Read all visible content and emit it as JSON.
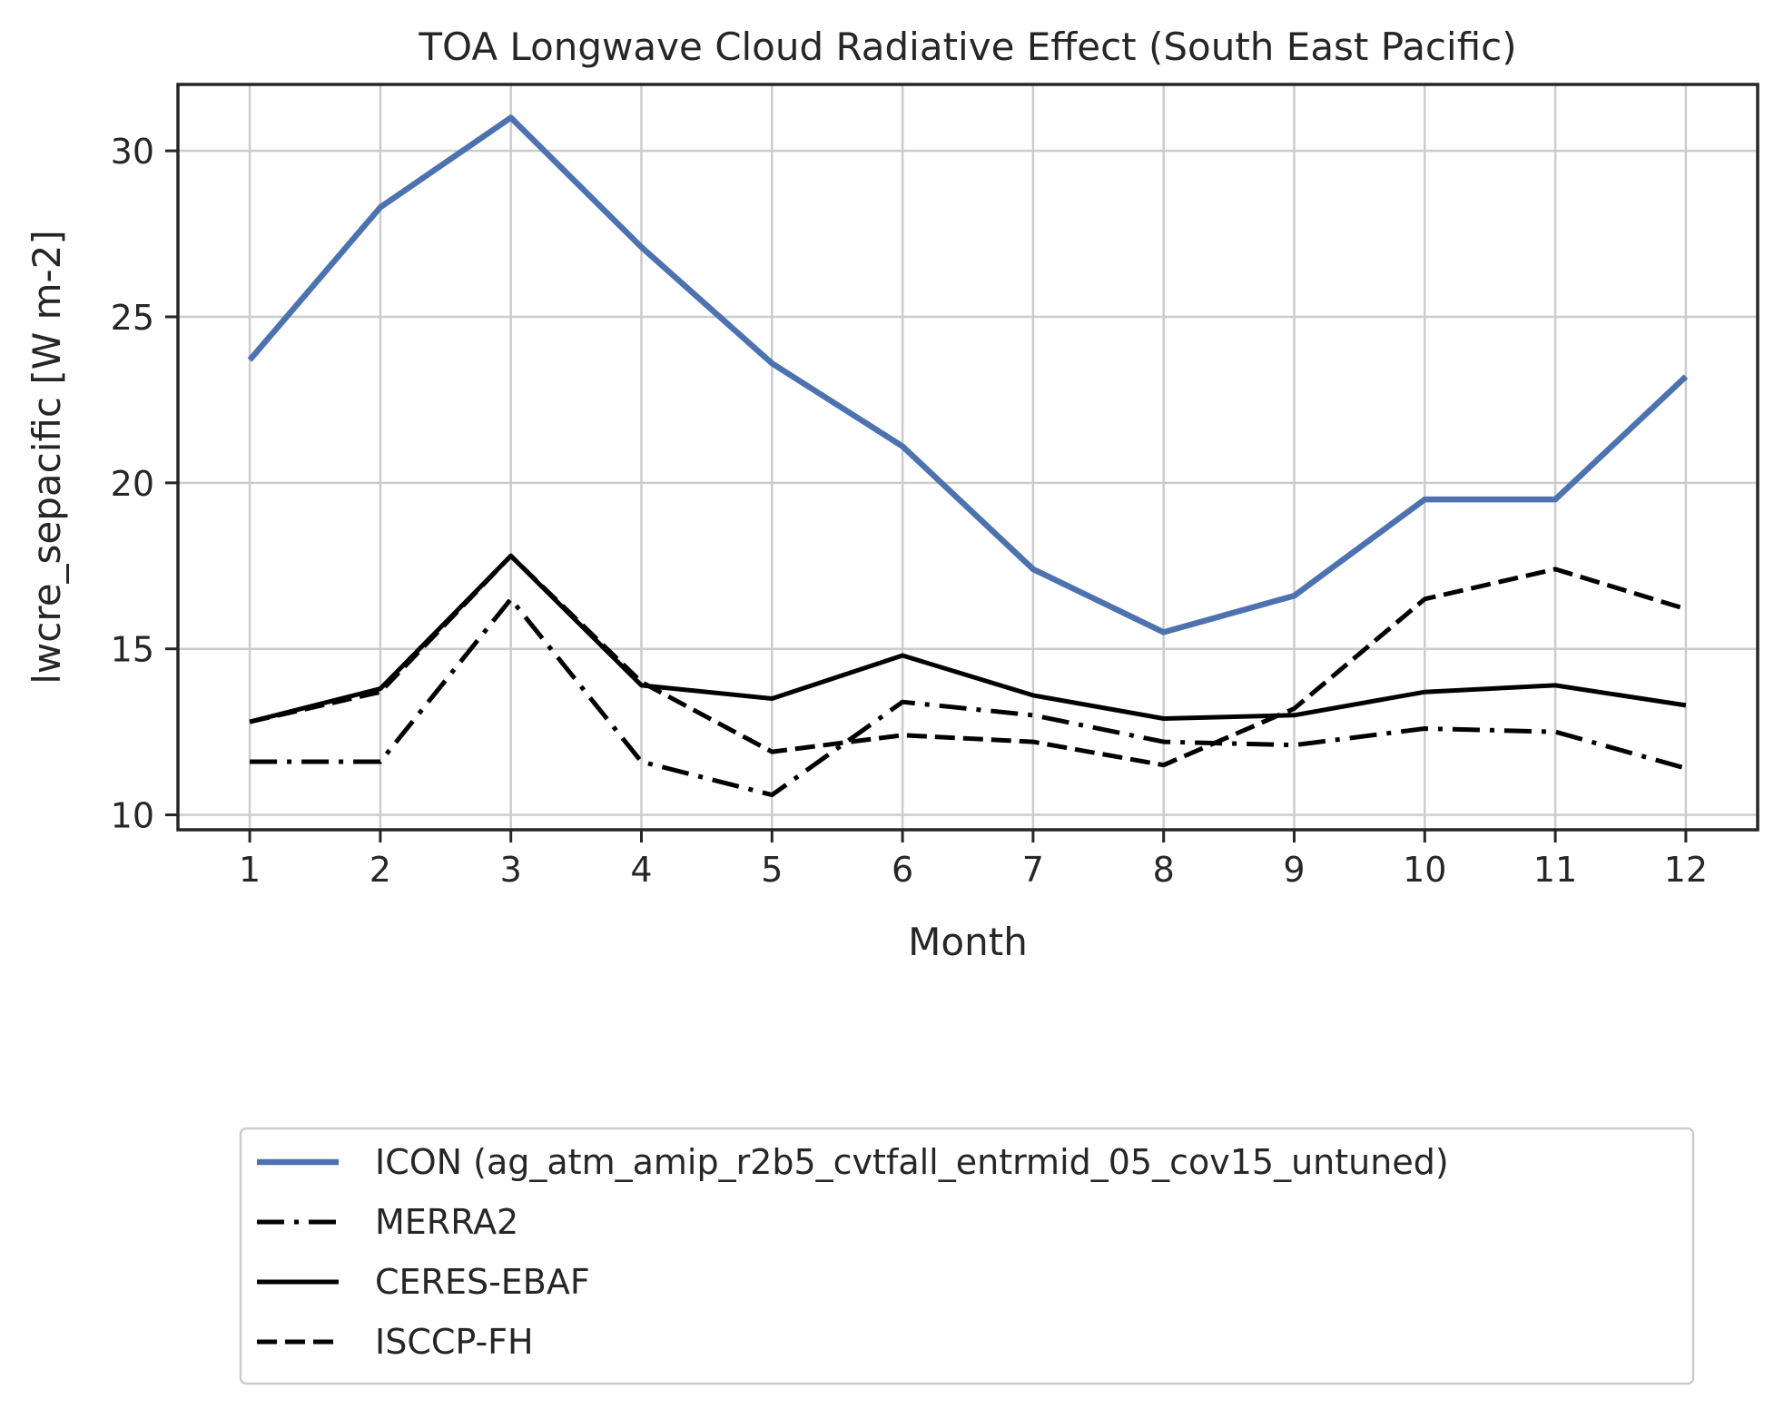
{
  "chart_data": {
    "type": "line",
    "title": "TOA Longwave Cloud Radiative Effect (South East Pacific)",
    "xlabel": "Month",
    "ylabel": "lwcre_sepacific [W m-2]",
    "x": [
      1,
      2,
      3,
      4,
      5,
      6,
      7,
      8,
      9,
      10,
      11,
      12
    ],
    "x_ticks": [
      "1",
      "2",
      "3",
      "4",
      "5",
      "6",
      "7",
      "8",
      "9",
      "10",
      "11",
      "12"
    ],
    "xlim": [
      0.45,
      12.55
    ],
    "ylim": [
      9.55,
      32.0
    ],
    "y_ticks": [
      "10",
      "15",
      "20",
      "25",
      "30"
    ],
    "grid": true,
    "legend_position": "below plot",
    "series": [
      {
        "name": "ICON (ag_atm_amip_r2b5_cvtfall_entrmid_05_cov15_untuned)",
        "values": [
          23.7,
          28.3,
          31.0,
          27.1,
          23.6,
          21.1,
          17.4,
          15.5,
          16.6,
          19.5,
          19.5,
          23.2
        ],
        "color": "#4c72b0",
        "style": "solid"
      },
      {
        "name": "MERRA2",
        "values": [
          11.6,
          11.6,
          16.5,
          11.6,
          10.6,
          13.4,
          13.0,
          12.2,
          12.1,
          12.6,
          12.5,
          11.4
        ],
        "color": "#000000",
        "style": "dashdot"
      },
      {
        "name": "CERES-EBAF",
        "values": [
          12.8,
          13.8,
          17.8,
          13.9,
          13.5,
          14.8,
          13.6,
          12.9,
          13.0,
          13.7,
          13.9,
          13.3
        ],
        "color": "#000000",
        "style": "solid"
      },
      {
        "name": "ISCCP-FH",
        "values": [
          12.8,
          13.7,
          17.8,
          14.0,
          11.9,
          12.4,
          12.2,
          11.5,
          13.2,
          16.5,
          17.4,
          16.2
        ],
        "color": "#000000",
        "style": "dashed"
      }
    ]
  }
}
